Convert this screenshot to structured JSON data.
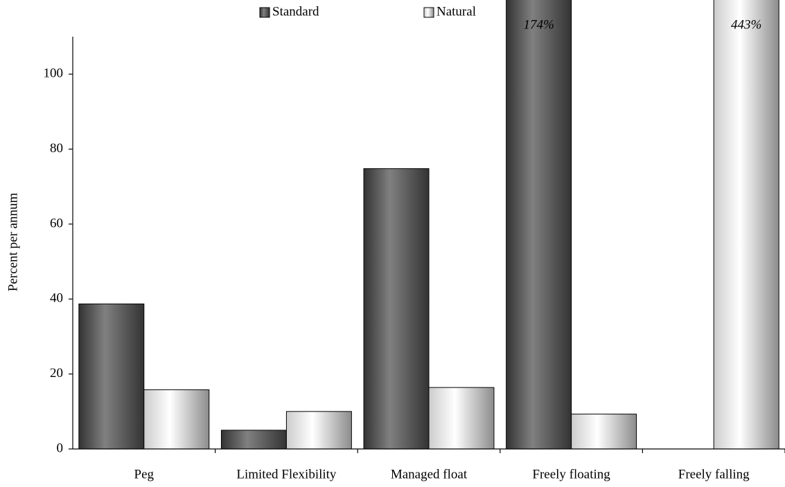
{
  "chart_data": {
    "type": "bar",
    "categories": [
      "Peg",
      "Limited Flexibility",
      "Managed float",
      "Freely floating",
      "Freely falling"
    ],
    "series": [
      {
        "name": "Standard",
        "color": "#808080",
        "values": [
          38.7,
          5.0,
          74.8,
          174,
          null
        ],
        "value_labels": [
          null,
          null,
          null,
          "174%",
          null
        ]
      },
      {
        "name": "Natural",
        "color": "#ffffff",
        "values": [
          15.8,
          10.0,
          16.4,
          9.3,
          443
        ],
        "value_labels": [
          null,
          null,
          null,
          null,
          "443%"
        ]
      }
    ],
    "y_label": "Percent per annum",
    "ylim": [
      0,
      110
    ],
    "yticks": [
      0,
      20,
      40,
      60,
      80,
      100
    ],
    "grid": false,
    "legend": "top"
  }
}
